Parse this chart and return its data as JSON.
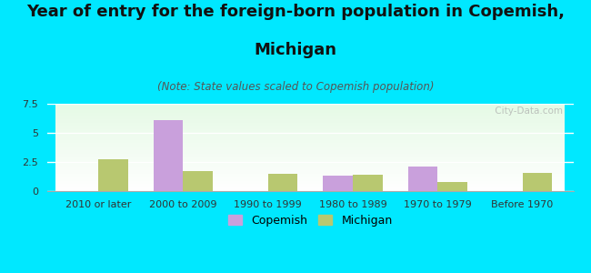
{
  "title_line1": "Year of entry for the foreign-born population in Copemish,",
  "title_line2": "Michigan",
  "subtitle": "(Note: State values scaled to Copemish population)",
  "categories": [
    "2010 or later",
    "2000 to 2009",
    "1990 to 1999",
    "1980 to 1989",
    "1970 to 1979",
    "Before 1970"
  ],
  "copemish_values": [
    0,
    6.1,
    0,
    1.3,
    2.1,
    0
  ],
  "michigan_values": [
    2.7,
    1.7,
    1.5,
    1.4,
    0.75,
    1.6
  ],
  "copemish_color": "#c9a0dc",
  "michigan_color": "#b8c870",
  "background_color": "#00e8ff",
  "ylim_max": 7.5,
  "yticks": [
    0,
    2.5,
    5,
    7.5
  ],
  "bar_width": 0.35,
  "watermark": " City-Data.com",
  "legend_copemish": "Copemish",
  "legend_michigan": "Michigan",
  "title_fontsize": 13,
  "subtitle_fontsize": 8.5,
  "tick_fontsize": 8,
  "legend_fontsize": 9
}
